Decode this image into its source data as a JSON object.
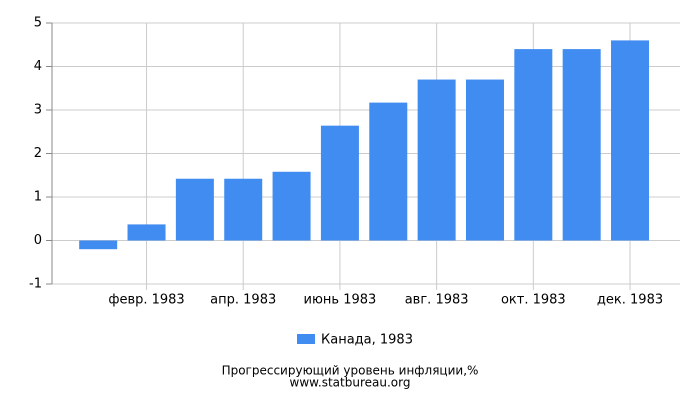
{
  "chart_data": {
    "type": "bar",
    "categories": [
      null,
      "февр. 1983",
      null,
      "апр. 1983",
      null,
      "июнь 1983",
      null,
      "авг. 1983",
      null,
      "окт. 1983",
      null,
      "дек. 1983"
    ],
    "series": [
      {
        "name": "Канада, 1983",
        "color": "#418cf0",
        "values": [
          -0.2,
          0.37,
          1.42,
          1.42,
          1.58,
          2.64,
          3.17,
          3.7,
          3.7,
          4.4,
          4.4,
          4.6
        ]
      }
    ],
    "ylim": [
      -1,
      5
    ],
    "yticks": [
      -1,
      0,
      1,
      2,
      3,
      4,
      5
    ],
    "grid": true,
    "footer": [
      "Прогрессирующий уровень инфляции,%",
      "www.statbureau.org"
    ]
  }
}
